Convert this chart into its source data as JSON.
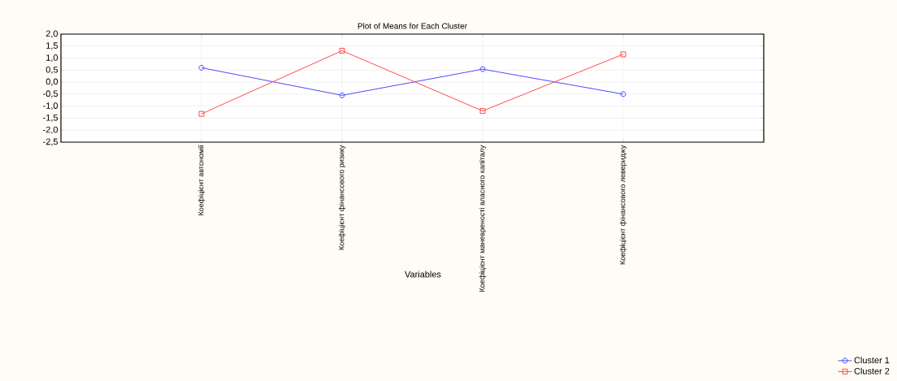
{
  "chart_data": {
    "type": "line",
    "title": "Plot of Means for Each Cluster",
    "xlabel": "Variables",
    "categories": [
      "Коефіцієнт автономії",
      "Коефіцієнт фінансового ризику",
      "Коефіцієнт маневреності власного капіталу",
      "Коефіцієнт фінансового левериджу"
    ],
    "series": [
      {
        "name": "Cluster  1",
        "color": "#4a4aff",
        "marker": "circle",
        "values": [
          0.6,
          -0.55,
          0.54,
          -0.5
        ]
      },
      {
        "name": "Cluster  2",
        "color": "#ff4a4a",
        "marker": "square",
        "values": [
          -1.32,
          1.31,
          -1.2,
          1.16
        ]
      }
    ],
    "ylim": [
      -2.5,
      2.0
    ],
    "yticks": [
      {
        "value": 2.0,
        "label": "2,0"
      },
      {
        "value": 1.5,
        "label": "1,5"
      },
      {
        "value": 1.0,
        "label": "1,0"
      },
      {
        "value": 0.5,
        "label": "0,5"
      },
      {
        "value": 0.0,
        "label": "0,0"
      },
      {
        "value": -0.5,
        "label": "-0,5"
      },
      {
        "value": -1.0,
        "label": "-1,0"
      },
      {
        "value": -1.5,
        "label": "-1,5"
      },
      {
        "value": -2.0,
        "label": "-2,0"
      },
      {
        "value": -2.5,
        "label": "-2,5"
      }
    ],
    "grid": true,
    "legend": "bottom right",
    "line_style": "solid"
  }
}
